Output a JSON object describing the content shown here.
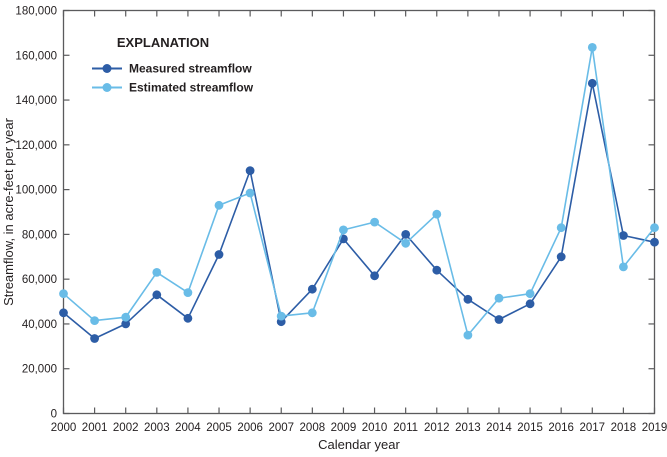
{
  "chart_data": {
    "type": "line",
    "x": [
      2000,
      2001,
      2002,
      2003,
      2004,
      2005,
      2006,
      2007,
      2008,
      2009,
      2010,
      2011,
      2012,
      2013,
      2014,
      2015,
      2016,
      2017,
      2018,
      2019
    ],
    "series": [
      {
        "name": "Measured streamflow",
        "color": "#2d5da6",
        "values": [
          45000,
          33500,
          40000,
          53000,
          42500,
          71000,
          108500,
          41000,
          55500,
          78000,
          61500,
          80000,
          64000,
          51000,
          42000,
          49000,
          70000,
          147500,
          79500,
          76500
        ]
      },
      {
        "name": "Estimated streamflow",
        "color": "#69bce7",
        "values": [
          53500,
          41500,
          43000,
          63000,
          54000,
          93000,
          98500,
          43500,
          45000,
          82000,
          85500,
          76000,
          89000,
          35000,
          51500,
          53500,
          83000,
          163500,
          65500,
          83000
        ]
      }
    ],
    "xlabel": "Calendar year",
    "ylabel": "Streamflow, in acre-feet per year",
    "xlim": [
      2000,
      2019
    ],
    "ylim": [
      0,
      180000
    ],
    "ytick_step": 20000,
    "grid": false,
    "legend_title": "EXPLANATION",
    "legend_position": "top-left-inside",
    "marker": "circle"
  },
  "colors": {
    "measured": "#2d5da6",
    "estimated": "#69bce7",
    "frame": "#5b5b5d",
    "text": "#231f20",
    "background": "#ffffff"
  }
}
